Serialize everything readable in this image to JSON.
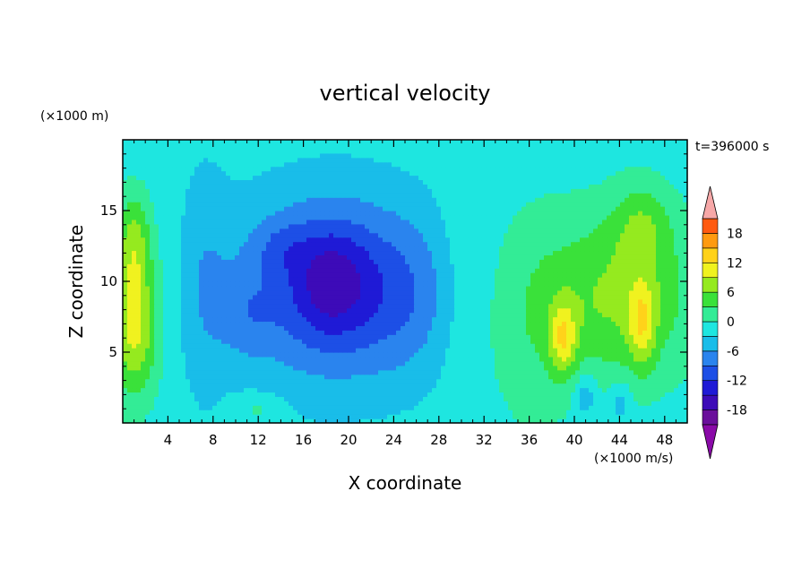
{
  "chart_data": {
    "type": "heatmap",
    "title": "vertical velocity",
    "xlabel": "X coordinate",
    "ylabel": "Z coordinate",
    "x_unit": "(×1000 m/s)",
    "y_unit": "(×1000 m)",
    "time_label": "t=396000 s",
    "xlim": [
      0,
      50
    ],
    "ylim": [
      0,
      20
    ],
    "x_ticks": [
      4,
      8,
      12,
      16,
      20,
      24,
      28,
      32,
      36,
      40,
      44,
      48
    ],
    "y_ticks": [
      5,
      10,
      15
    ],
    "colorbar": {
      "levels": [
        -21,
        -18,
        -15,
        -12,
        -9,
        -6,
        -3,
        0,
        3,
        6,
        9,
        12,
        15,
        18,
        21
      ],
      "tick_labels": [
        18,
        12,
        6,
        0,
        -6,
        -12,
        -18
      ],
      "colors": [
        "#6a0f9b",
        "#3d0bb8",
        "#1f1ad6",
        "#1d4fe6",
        "#2a84ee",
        "#19bde9",
        "#1ee6e0",
        "#33ec96",
        "#3ae13a",
        "#95ea1f",
        "#f0f21f",
        "#ffd21a",
        "#ff9a10",
        "#ff5a10",
        "#ee1a14"
      ],
      "under_color": "#8a0aa8",
      "over_color": "#f7a8a8"
    },
    "features": [
      {
        "x": 18.5,
        "z": 9.5,
        "sx": 9.0,
        "sz": 7.0,
        "w": -9
      },
      {
        "x": 18.5,
        "z": 10.0,
        "sx": 3.5,
        "sz": 4.0,
        "w": -7
      },
      {
        "x": 14.0,
        "z": 12.5,
        "sx": 2.5,
        "sz": 2.0,
        "w": -3
      },
      {
        "x": 25.0,
        "z": 9.0,
        "sx": 4.0,
        "sz": 5.5,
        "w": -3
      },
      {
        "x": 11.0,
        "z": 7.5,
        "sx": 2.5,
        "sz": 3.0,
        "w": -3
      },
      {
        "x": 7.0,
        "z": 10.0,
        "sx": 2.5,
        "sz": 9.0,
        "w": -3
      },
      {
        "x": 1.0,
        "z": 7.0,
        "sx": 2.0,
        "sz": 5.0,
        "w": 12
      },
      {
        "x": 1.0,
        "z": 13.0,
        "sx": 1.5,
        "sz": 3.5,
        "w": 7
      },
      {
        "x": 44.0,
        "z": 9.0,
        "sx": 7.0,
        "sz": 6.0,
        "w": 8
      },
      {
        "x": 39.0,
        "z": 6.0,
        "sx": 1.2,
        "sz": 2.5,
        "w": 9
      },
      {
        "x": 46.0,
        "z": 7.0,
        "sx": 1.2,
        "sz": 3.0,
        "w": 8
      },
      {
        "x": 46.0,
        "z": 14.0,
        "sx": 2.5,
        "sz": 3.0,
        "w": 5
      },
      {
        "x": 36.0,
        "z": 7.0,
        "sx": 4.0,
        "sz": 8.0,
        "w": 3
      },
      {
        "x": 41.0,
        "z": 2.0,
        "sx": 1.0,
        "sz": 1.5,
        "w": -5
      },
      {
        "x": 44.0,
        "z": 1.5,
        "sx": 1.0,
        "sz": 1.5,
        "w": -4
      },
      {
        "x": 12.0,
        "z": 1.0,
        "sx": 2.0,
        "sz": 1.0,
        "w": 3
      },
      {
        "x": 30.0,
        "z": 10.0,
        "sx": 2.0,
        "sz": 10.0,
        "w": 1.5
      },
      {
        "x": 4.5,
        "z": 10.0,
        "sx": 1.5,
        "sz": 10.0,
        "w": 1.0
      }
    ],
    "background_value": -1.5
  }
}
